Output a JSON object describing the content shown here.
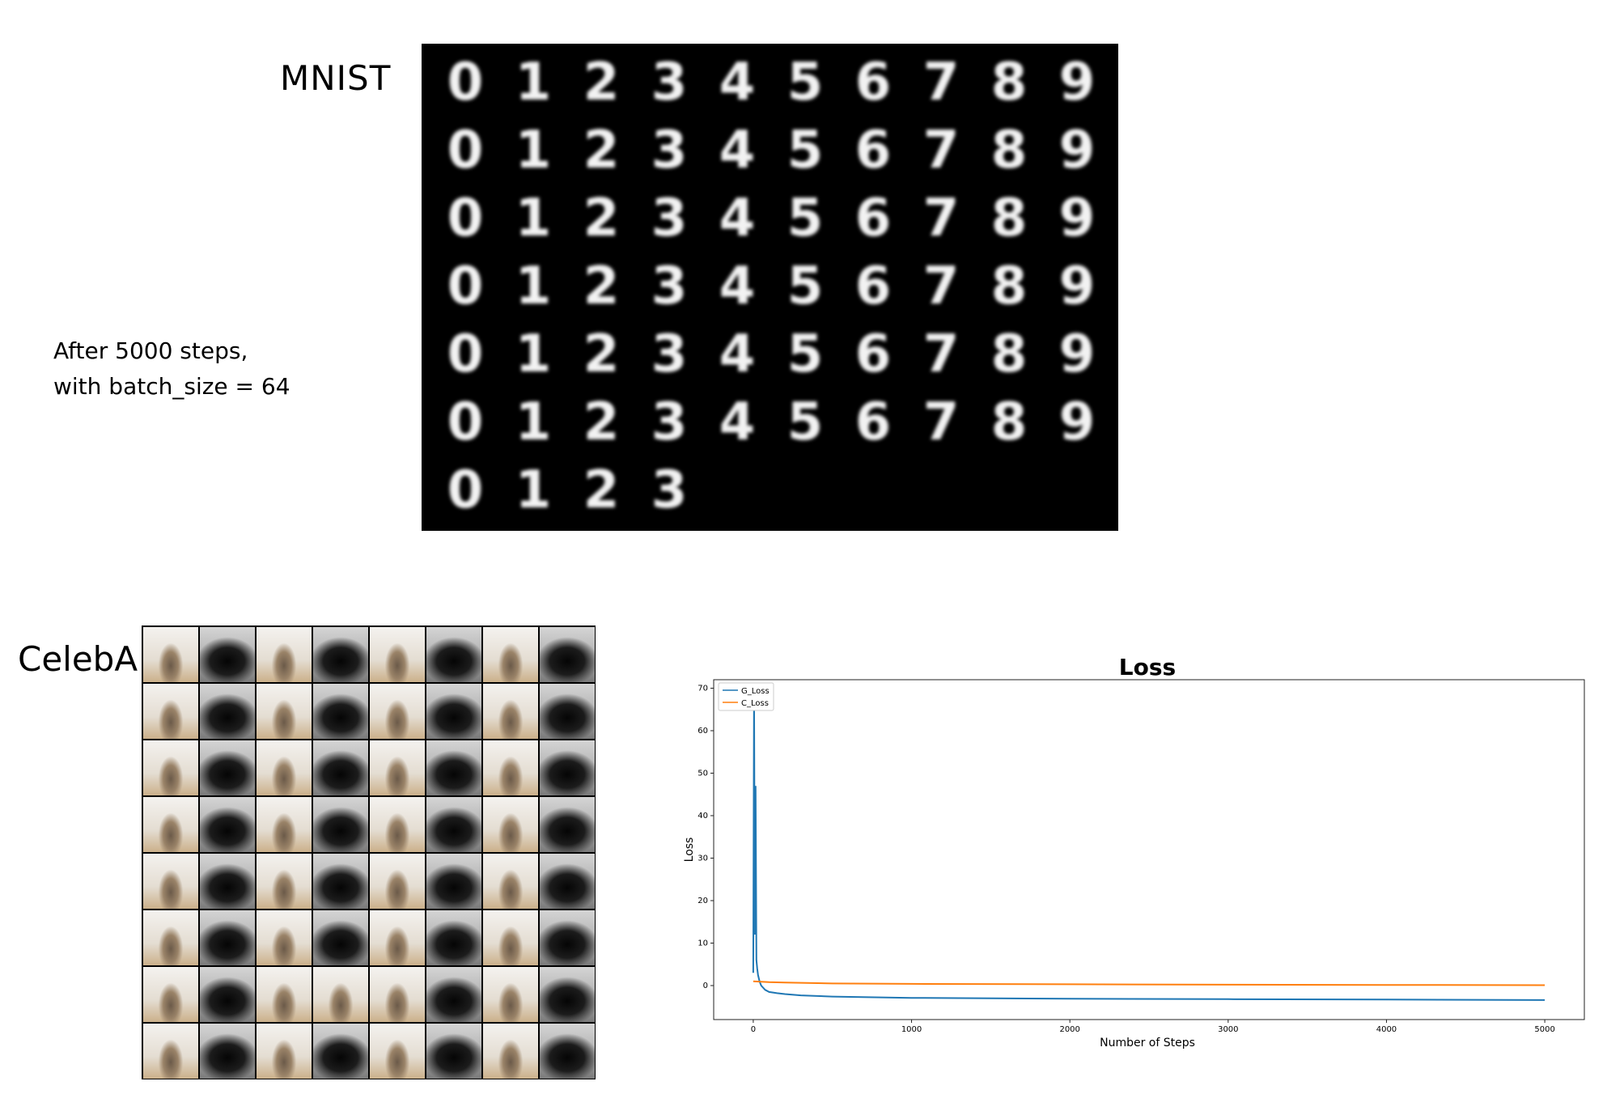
{
  "labels": {
    "mnist": "MNIST",
    "celeba": "CelebA",
    "note_line1": "After 5000 steps,",
    "note_line2": "with batch_size = 64"
  },
  "mnist": {
    "rows": [
      [
        "0",
        "1",
        "2",
        "3",
        "4",
        "5",
        "6",
        "7",
        "8",
        "9"
      ],
      [
        "0",
        "1",
        "2",
        "3",
        "4",
        "5",
        "6",
        "7",
        "8",
        "9"
      ],
      [
        "0",
        "1",
        "2",
        "3",
        "4",
        "5",
        "6",
        "7",
        "8",
        "9"
      ],
      [
        "0",
        "1",
        "2",
        "3",
        "4",
        "5",
        "6",
        "7",
        "8",
        "9"
      ],
      [
        "0",
        "1",
        "2",
        "3",
        "4",
        "5",
        "6",
        "7",
        "8",
        "9"
      ],
      [
        "0",
        "1",
        "2",
        "3",
        "4",
        "5",
        "6",
        "7",
        "8",
        "9"
      ],
      [
        "0",
        "1",
        "2",
        "3"
      ]
    ]
  },
  "celeba": {
    "grid": [
      [
        "light",
        "dark",
        "light",
        "dark",
        "light",
        "dark",
        "light",
        "dark"
      ],
      [
        "light",
        "dark",
        "light",
        "dark",
        "light",
        "dark",
        "light",
        "dark"
      ],
      [
        "light",
        "dark",
        "light",
        "dark",
        "light",
        "dark",
        "light",
        "dark"
      ],
      [
        "light",
        "dark",
        "light",
        "dark",
        "light",
        "dark",
        "light",
        "dark"
      ],
      [
        "light",
        "dark",
        "light",
        "dark",
        "light",
        "dark",
        "light",
        "dark"
      ],
      [
        "light",
        "dark",
        "light",
        "dark",
        "light",
        "dark",
        "light",
        "dark"
      ],
      [
        "light",
        "dark",
        "light",
        "light",
        "light",
        "dark",
        "light",
        "dark"
      ],
      [
        "light",
        "dark",
        "light",
        "dark",
        "light",
        "dark",
        "light",
        "dark"
      ]
    ]
  },
  "chart_data": {
    "type": "line",
    "title": "Loss",
    "xlabel": "Number of Steps",
    "ylabel": "Loss",
    "xlim": [
      -250,
      5250
    ],
    "ylim": [
      -8,
      72
    ],
    "xticks": [
      0,
      1000,
      2000,
      3000,
      4000,
      5000
    ],
    "yticks": [
      0,
      10,
      20,
      30,
      40,
      50,
      60,
      70
    ],
    "legend_position": "top-left",
    "grid": false,
    "series": [
      {
        "name": "G_Loss",
        "color": "#1f77b4",
        "x": [
          0,
          5,
          10,
          15,
          20,
          25,
          30,
          40,
          50,
          75,
          100,
          150,
          200,
          300,
          500,
          1000,
          2000,
          3000,
          4000,
          5000
        ],
        "y": [
          3,
          70,
          12,
          47,
          6,
          4,
          2.5,
          1,
          0,
          -1,
          -1.5,
          -1.8,
          -2,
          -2.3,
          -2.6,
          -2.9,
          -3.1,
          -3.2,
          -3.3,
          -3.4
        ]
      },
      {
        "name": "C_Loss",
        "color": "#ff7f0e",
        "x": [
          0,
          50,
          100,
          200,
          500,
          1000,
          2000,
          3000,
          4000,
          5000
        ],
        "y": [
          1,
          0.9,
          0.8,
          0.7,
          0.5,
          0.4,
          0.3,
          0.2,
          0.15,
          0.1
        ]
      }
    ]
  }
}
